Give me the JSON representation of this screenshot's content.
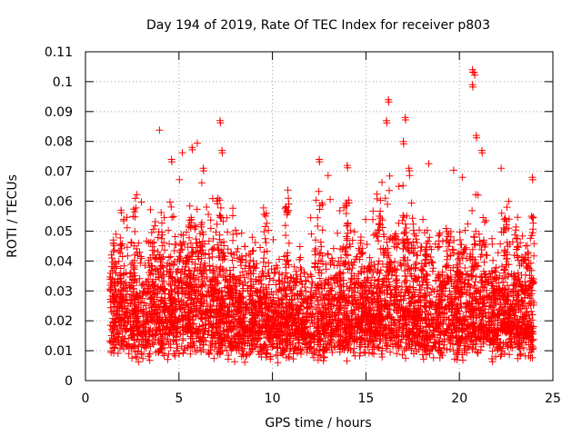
{
  "chart_data": {
    "type": "scatter",
    "title": "Day 194 of 2019, Rate Of TEC Index for receiver p803",
    "xlabel": "GPS time / hours",
    "ylabel": "ROTI / TECUs",
    "xlim": [
      0,
      25
    ],
    "ylim": [
      0,
      0.11
    ],
    "x_ticks": [
      0,
      5,
      10,
      15,
      20,
      25
    ],
    "x_tick_labels": [
      "0",
      "5",
      "10",
      "15",
      "20",
      "25"
    ],
    "y_ticks": [
      0,
      0.01,
      0.02,
      0.03,
      0.04,
      0.05,
      0.06,
      0.07,
      0.08,
      0.09,
      0.1,
      0.11
    ],
    "y_tick_labels": [
      "0",
      "0.01",
      "0.02",
      "0.03",
      "0.04",
      "0.05",
      "0.06",
      "0.07",
      "0.08",
      "0.09",
      "0.1",
      "0.11"
    ],
    "grid": true,
    "marker": "plus",
    "series": [
      {
        "name": "ROTI",
        "color": "#ff0000",
        "data_range_x": [
          1.3,
          24.0
        ],
        "typical_range_y": [
          0.005,
          0.045
        ],
        "notable_points": [
          {
            "x": 1.5,
            "y": 0.046
          },
          {
            "x": 1.9,
            "y": 0.057
          },
          {
            "x": 4.6,
            "y": 0.074
          },
          {
            "x": 5.7,
            "y": 0.078
          },
          {
            "x": 6.3,
            "y": 0.071
          },
          {
            "x": 7.2,
            "y": 0.087
          },
          {
            "x": 7.3,
            "y": 0.077
          },
          {
            "x": 12.5,
            "y": 0.074
          },
          {
            "x": 14.0,
            "y": 0.072
          },
          {
            "x": 16.2,
            "y": 0.094
          },
          {
            "x": 16.1,
            "y": 0.087
          },
          {
            "x": 17.1,
            "y": 0.088
          },
          {
            "x": 17.0,
            "y": 0.08
          },
          {
            "x": 17.3,
            "y": 0.071
          },
          {
            "x": 20.7,
            "y": 0.104
          },
          {
            "x": 20.8,
            "y": 0.103
          },
          {
            "x": 20.7,
            "y": 0.099
          },
          {
            "x": 20.9,
            "y": 0.082
          },
          {
            "x": 21.2,
            "y": 0.077
          },
          {
            "x": 23.9,
            "y": 0.068
          }
        ]
      }
    ]
  }
}
